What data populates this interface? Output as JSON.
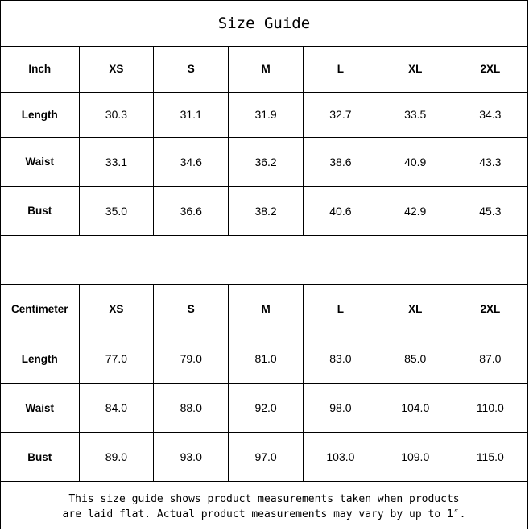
{
  "title": "Size Guide",
  "sizes": [
    "XS",
    "S",
    "M",
    "L",
    "XL",
    "2XL"
  ],
  "inch": {
    "unit_label": "Inch",
    "rows": [
      {
        "label": "Length",
        "values": [
          "30.3",
          "31.1",
          "31.9",
          "32.7",
          "33.5",
          "34.3"
        ]
      },
      {
        "label": "Waist",
        "values": [
          "33.1",
          "34.6",
          "36.2",
          "38.6",
          "40.9",
          "43.3"
        ]
      },
      {
        "label": "Bust",
        "values": [
          "35.0",
          "36.6",
          "38.2",
          "40.6",
          "42.9",
          "45.3"
        ]
      }
    ]
  },
  "cm": {
    "unit_label": "Centimeter",
    "rows": [
      {
        "label": "Length",
        "values": [
          "77.0",
          "79.0",
          "81.0",
          "83.0",
          "85.0",
          "87.0"
        ]
      },
      {
        "label": "Waist",
        "values": [
          "84.0",
          "88.0",
          "92.0",
          "98.0",
          "104.0",
          "110.0"
        ]
      },
      {
        "label": "Bust",
        "values": [
          "89.0",
          "93.0",
          "97.0",
          "103.0",
          "109.0",
          "115.0"
        ]
      }
    ]
  },
  "note": {
    "line1": "This size guide shows product measurements taken when products",
    "line2": "are laid flat. Actual product measurements may vary by up to 1″."
  }
}
